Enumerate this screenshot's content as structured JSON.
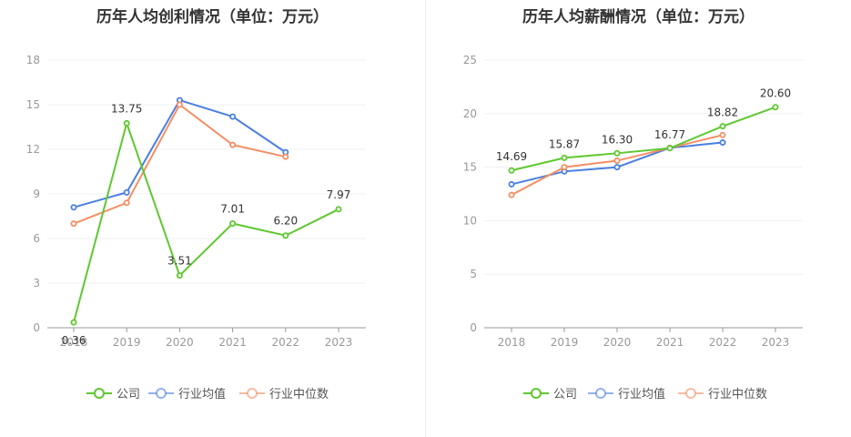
{
  "chart_data": [
    {
      "type": "line",
      "title": "历年人均创利情况（单位：万元）",
      "categories": [
        "2018",
        "2019",
        "2020",
        "2021",
        "2022",
        "2023"
      ],
      "ylim": [
        0,
        18
      ],
      "yticks": [
        0,
        3,
        6,
        9,
        12,
        15,
        18
      ],
      "grid": true,
      "legend": "bottom",
      "series": [
        {
          "name": "公司",
          "color": "#5ec82f",
          "values": [
            0.36,
            13.75,
            3.51,
            7.01,
            6.2,
            7.97
          ],
          "labels": [
            "0.36",
            "13.75",
            "3.51",
            "7.01",
            "6.20",
            "7.97"
          ]
        },
        {
          "name": "行业均值",
          "color": "#4a7fe0",
          "values": [
            8.1,
            9.1,
            15.3,
            14.2,
            11.8,
            null
          ]
        },
        {
          "name": "行业中位数",
          "color": "#f58e64",
          "values": [
            7.0,
            8.4,
            15.0,
            12.3,
            11.5,
            null
          ]
        }
      ]
    },
    {
      "type": "line",
      "title": "历年人均薪酬情况（单位：万元）",
      "categories": [
        "2018",
        "2019",
        "2020",
        "2021",
        "2022",
        "2023"
      ],
      "ylim": [
        0,
        25
      ],
      "yticks": [
        0,
        5,
        10,
        15,
        20,
        25
      ],
      "grid": true,
      "legend": "bottom",
      "series": [
        {
          "name": "公司",
          "color": "#5ec82f",
          "values": [
            14.69,
            15.87,
            16.3,
            16.77,
            18.82,
            20.6
          ],
          "labels": [
            "14.69",
            "15.87",
            "16.30",
            "16.77",
            "18.82",
            "20.60"
          ]
        },
        {
          "name": "行业均值",
          "color": "#4a7fe0",
          "values": [
            13.4,
            14.6,
            15.0,
            16.8,
            17.3,
            null
          ]
        },
        {
          "name": "行业中位数",
          "color": "#f58e64",
          "values": [
            12.4,
            15.0,
            15.6,
            16.8,
            18.0,
            null
          ]
        }
      ]
    }
  ]
}
